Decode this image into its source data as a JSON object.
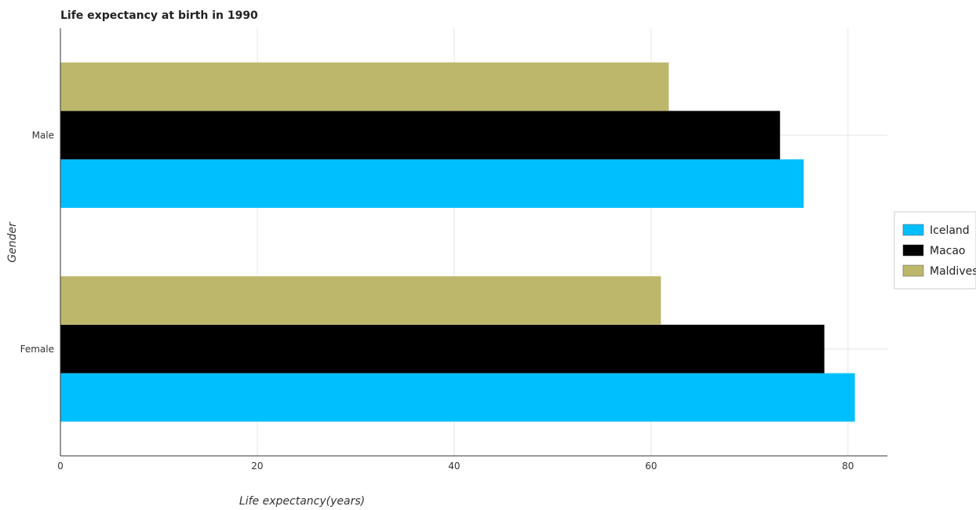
{
  "chart_data": {
    "type": "bar",
    "orientation": "horizontal",
    "title": "Life expectancy at birth in 1990",
    "xlabel": "Life expectancy(years)",
    "ylabel": "Gender",
    "categories": [
      "Female",
      "Male"
    ],
    "series": [
      {
        "name": "Iceland",
        "color": "#00bfff",
        "values": [
          80.7,
          75.5
        ]
      },
      {
        "name": "Macao",
        "color": "#000000",
        "values": [
          77.6,
          73.1
        ]
      },
      {
        "name": "Maldives",
        "color": "#bdb76b",
        "values": [
          61.0,
          61.8
        ]
      }
    ],
    "xlim": [
      0,
      84
    ],
    "xticks": [
      0,
      20,
      40,
      60,
      80
    ],
    "grid": true,
    "legend_position": "right"
  }
}
